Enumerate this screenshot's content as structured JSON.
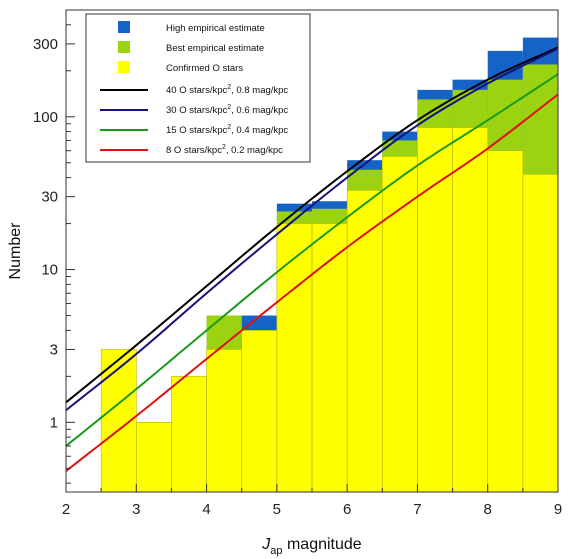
{
  "chart_data": {
    "type": "histogram",
    "xlabel": {
      "main": "J",
      "sub": "ap",
      "rest": " magnitude"
    },
    "ylabel": "Number",
    "xlim": [
      2,
      9
    ],
    "ylim": [
      0.35,
      500
    ],
    "yscale": "log",
    "xticks": [
      2,
      3,
      4,
      5,
      6,
      7,
      8,
      9
    ],
    "yticks": [
      1,
      3,
      10,
      30,
      100,
      300
    ],
    "bin_edges": [
      2.5,
      3.0,
      3.5,
      4.0,
      4.5,
      5.0,
      5.5,
      6.0,
      6.5,
      7.0,
      7.5,
      8.0,
      8.5,
      9.0
    ],
    "series": [
      {
        "name": "High empirical estimate",
        "color": "#1563c6",
        "values": [
          3,
          1,
          2,
          5,
          5,
          27,
          28,
          52,
          80,
          150,
          175,
          270,
          330
        ]
      },
      {
        "name": "Best empirical estimate",
        "color": "#9bd310",
        "values": [
          3,
          1,
          2,
          5,
          4,
          24,
          25,
          45,
          70,
          130,
          150,
          175,
          220
        ]
      },
      {
        "name": "Confirmed O stars",
        "color": "#ffff00",
        "values": [
          3,
          1,
          2,
          3,
          4,
          20,
          20,
          33,
          55,
          85,
          85,
          60,
          42
        ]
      }
    ],
    "models": [
      {
        "name": "40 O stars/kpc², 0.8 mag/kpc",
        "color": "#000000",
        "label_parts": [
          "40 O stars/kpc",
          "2",
          ", 0.8 mag/kpc"
        ],
        "x": [
          2,
          3,
          4,
          5,
          6,
          7,
          8,
          9
        ],
        "y": [
          1.35,
          3.2,
          7.8,
          19,
          44,
          95,
          175,
          285
        ]
      },
      {
        "name": "30 O stars/kpc², 0.6 mag/kpc",
        "color": "#17127a",
        "label_parts": [
          "30 O stars/kpc",
          "2",
          ", 0.6 mag/kpc"
        ],
        "x": [
          2,
          3,
          4,
          5,
          6,
          7,
          8,
          9
        ],
        "y": [
          1.2,
          2.8,
          7.0,
          17,
          40,
          88,
          165,
          280
        ]
      },
      {
        "name": "15 O stars/kpc², 0.4 mag/kpc",
        "color": "#1a9a1a",
        "label_parts": [
          "15 O stars/kpc",
          "2",
          ", 0.4 mag/kpc"
        ],
        "x": [
          2,
          3,
          4,
          5,
          6,
          7,
          8,
          9
        ],
        "y": [
          0.7,
          1.65,
          4.0,
          9.6,
          22,
          48,
          95,
          190
        ]
      },
      {
        "name": "8 O stars/kpc², 0.2 mag/kpc",
        "color": "#dd1111",
        "label_parts": [
          "  8 O stars/kpc",
          "2",
          ", 0.2 mag/kpc"
        ],
        "x": [
          2,
          3,
          4,
          5,
          6,
          7,
          8,
          9
        ],
        "y": [
          0.48,
          1.1,
          2.6,
          6.1,
          14,
          30,
          62,
          140
        ]
      }
    ]
  }
}
